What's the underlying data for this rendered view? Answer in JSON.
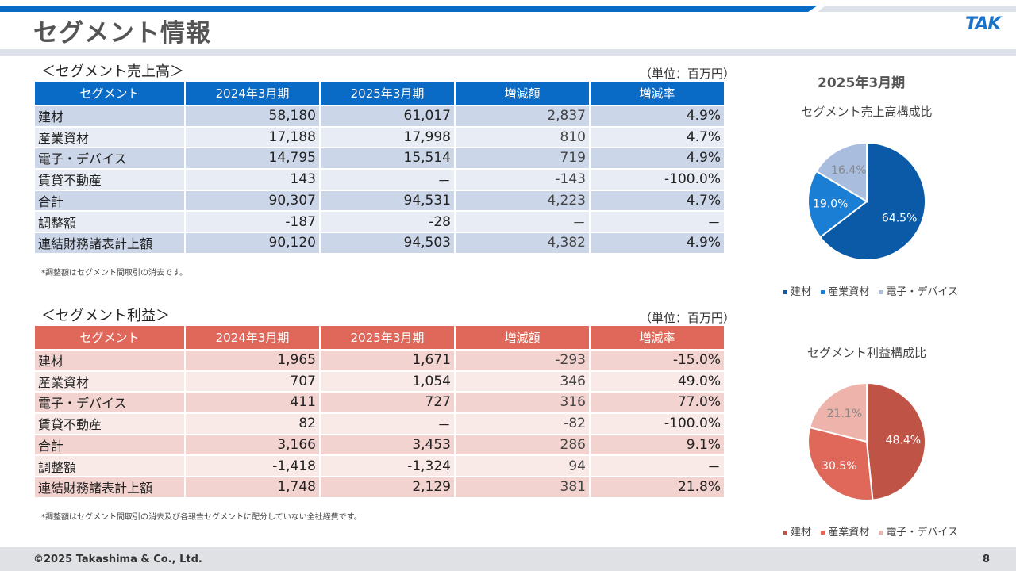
{
  "header": {
    "title": "セグメント情報",
    "logo_text": "TAK",
    "brand_color": "#0a6bc7"
  },
  "sales": {
    "title": "＜セグメント売上高＞",
    "unit": "（単位：百万円）",
    "columns": [
      "セグメント",
      "2024年3月期",
      "2025年3月期",
      "増減額",
      "増減率"
    ],
    "rows": [
      [
        "建材",
        "58,180",
        "61,017",
        "2,837",
        "4.9%"
      ],
      [
        "産業資材",
        "17,188",
        "17,998",
        "810",
        "4.7%"
      ],
      [
        "電子・デバイス",
        "14,795",
        "15,514",
        "719",
        "4.9%"
      ],
      [
        "賃貸不動産",
        "143",
        "－",
        "-143",
        "-100.0%"
      ],
      [
        "合計",
        "90,307",
        "94,531",
        "4,223",
        "4.7%"
      ],
      [
        "調整額",
        "-187",
        "-28",
        "－",
        "－"
      ],
      [
        "連結財務諸表計上額",
        "90,120",
        "94,503",
        "4,382",
        "4.9%"
      ]
    ],
    "note": "*調整額はセグメント間取引の消去です。"
  },
  "profit": {
    "title": "＜セグメント利益＞",
    "unit": "（単位：百万円）",
    "columns": [
      "セグメント",
      "2024年3月期",
      "2025年3月期",
      "増減額",
      "増減率"
    ],
    "rows": [
      [
        "建材",
        "1,965",
        "1,671",
        "-293",
        "-15.0%"
      ],
      [
        "産業資材",
        "707",
        "1,054",
        "346",
        "49.0%"
      ],
      [
        "電子・デバイス",
        "411",
        "727",
        "316",
        "77.0%"
      ],
      [
        "賃貸不動産",
        "82",
        "－",
        "-82",
        "-100.0%"
      ],
      [
        "合計",
        "3,166",
        "3,453",
        "286",
        "9.1%"
      ],
      [
        "調整額",
        "-1,418",
        "-1,324",
        "94",
        "－"
      ],
      [
        "連結財務諸表計上額",
        "1,748",
        "2,129",
        "381",
        "21.8%"
      ]
    ],
    "note": "*調整額はセグメント間取引の消去及び各報告セグメントに配分していない全社経費です。"
  },
  "charts": {
    "year_label": "2025年3月期"
  },
  "chart_data": [
    {
      "type": "pie",
      "title": "セグメント売上高構成比",
      "categories": [
        "建材",
        "産業資材",
        "電子・デバイス"
      ],
      "values": [
        64.5,
        19.0,
        16.4
      ],
      "labels": [
        "64.5%",
        "19.0%",
        "16.4%"
      ],
      "colors": [
        "#0a5aa8",
        "#1a7fd4",
        "#a9bede"
      ],
      "label_colors": [
        "#ffffff",
        "#ffffff",
        "#888888"
      ],
      "legend_position": "bottom"
    },
    {
      "type": "pie",
      "title": "セグメント利益構成比",
      "categories": [
        "建材",
        "産業資材",
        "電子・デバイス"
      ],
      "values": [
        48.4,
        30.5,
        21.1
      ],
      "labels": [
        "48.4%",
        "30.5%",
        "21.1%"
      ],
      "colors": [
        "#bf5446",
        "#e0685a",
        "#eeb3ab"
      ],
      "label_colors": [
        "#ffffff",
        "#ffffff",
        "#888888"
      ],
      "legend_position": "bottom"
    }
  ],
  "footer": {
    "copyright": "©2025 Takashima & Co., Ltd.",
    "page": "8"
  }
}
